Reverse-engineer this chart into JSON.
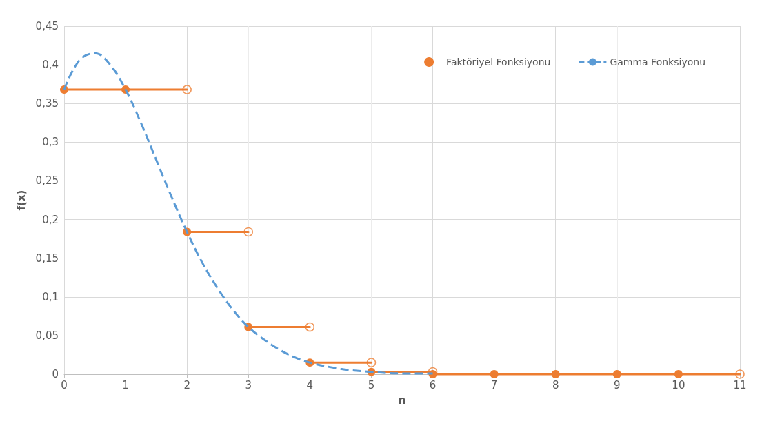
{
  "chart_data": {
    "type": "line",
    "xlabel": "n",
    "ylabel": "f(x)",
    "xlim": [
      0,
      11
    ],
    "xticks": [
      0,
      1,
      2,
      3,
      4,
      5,
      6,
      7,
      8,
      9,
      10,
      11
    ],
    "ylim": [
      0,
      0.45
    ],
    "yticks": [
      0,
      {
        "value": 0.05,
        "label": "0,05"
      },
      {
        "value": 0.1,
        "label": "0,1"
      },
      {
        "value": 0.15,
        "label": "0,15"
      },
      {
        "value": 0.2,
        "label": "0,2"
      },
      {
        "value": 0.25,
        "label": "0,25"
      },
      {
        "value": 0.3,
        "label": "0,3"
      },
      {
        "value": 0.35,
        "label": "0,35"
      },
      {
        "value": 0.4,
        "label": "0,4"
      },
      {
        "value": 0.45,
        "label": "0,45"
      }
    ],
    "grid": true,
    "legend": "top right",
    "series": [
      {
        "name": "Faktöriyel Fonksiyonu",
        "type": "step",
        "color": "#ed7d31",
        "marker": "circle",
        "x": [
          0,
          1,
          2,
          3,
          4,
          5,
          6,
          7,
          8,
          9,
          10,
          11
        ],
        "values": [
          0.368,
          0.368,
          0.184,
          0.061,
          0.015,
          0.003,
          0,
          0,
          0,
          0,
          0,
          0
        ]
      },
      {
        "type": "scatter",
        "color": "#ed7d31",
        "marker": "circle",
        "x": [
          2,
          3,
          4,
          5,
          6,
          11
        ],
        "values": [
          0.368,
          0.184,
          0.061,
          0.015,
          0.003,
          0
        ]
      },
      {
        "name": "Gamma Fonksiyonu",
        "color": "#5b9bd5",
        "line_style": "dashed",
        "marker": "none",
        "x": [
          0,
          0.25,
          0.5,
          0.75,
          1,
          1.25,
          1.5,
          1.75,
          2,
          2.25,
          2.5,
          2.75,
          3,
          3.25,
          3.5,
          3.75,
          4,
          4.5,
          5,
          5.5,
          6
        ],
        "values": [
          0.368,
          0.406,
          0.415,
          0.4,
          0.368,
          0.325,
          0.277,
          0.229,
          0.184,
          0.144,
          0.111,
          0.083,
          0.061,
          0.045,
          0.032,
          0.022,
          0.015,
          0.007,
          0.003,
          0.001,
          0.001
        ]
      }
    ]
  }
}
